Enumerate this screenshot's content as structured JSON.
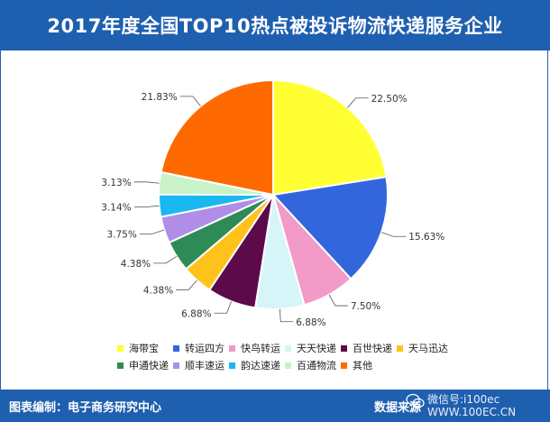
{
  "header": {
    "title": "2017年度全国TOP10热点被投诉物流快递服务企业"
  },
  "footer": {
    "source_label": "图表编制：电子商务研究中心",
    "data_source": "数据来源",
    "wechat": "微信号:i100ec",
    "site": "WWW.100EC.CN"
  },
  "chart_data": {
    "type": "pie",
    "title": "2017年度全国TOP10热点被投诉物流快递服务企业",
    "categories": [
      "海带宝",
      "转运四方",
      "快鸟转运",
      "天天快递",
      "百世快递",
      "天马迅达",
      "申通快递",
      "顺丰速运",
      "韵达速递",
      "百通物流",
      "其他"
    ],
    "values": [
      22.5,
      15.63,
      7.5,
      6.88,
      6.88,
      4.38,
      4.38,
      3.75,
      3.14,
      3.13,
      21.83
    ],
    "labels": [
      "22.50%",
      "15.63%",
      "7.50%",
      "6.88%",
      "6.88%",
      "4.38%",
      "4.38%",
      "3.75%",
      "3.14%",
      "3.13%",
      "21.83%"
    ],
    "colors": [
      "#ffff33",
      "#3366dd",
      "#f29ac8",
      "#d6f5f8",
      "#5c0a4a",
      "#ffc21a",
      "#2e8b57",
      "#b08ee8",
      "#1ab8f0",
      "#c9f2c9",
      "#ff6a00"
    ],
    "legend_position": "bottom"
  }
}
